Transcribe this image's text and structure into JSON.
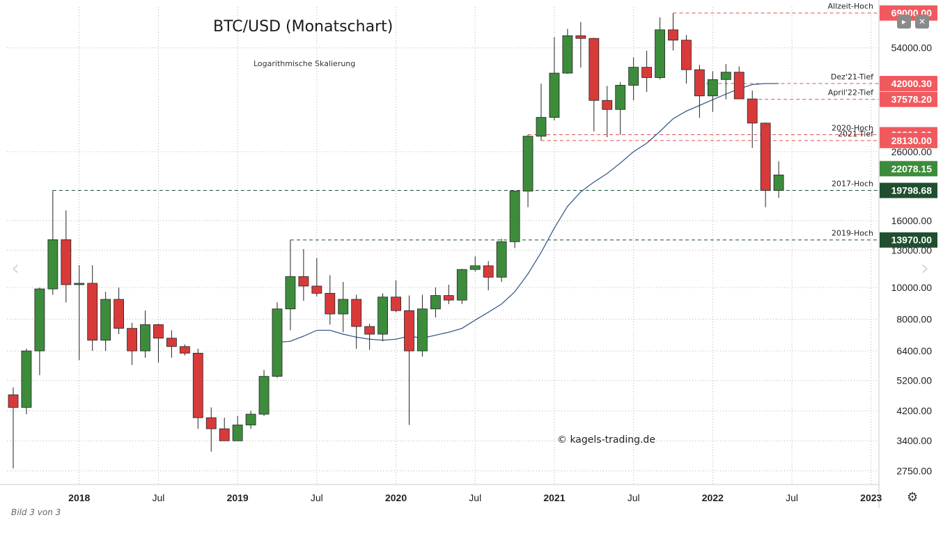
{
  "title": "BTC/USD (Monatschart)",
  "subtitle": "Logarithmische Skalierung",
  "watermark": "© kagels-trading.de",
  "caption": "Bild 3 von 3",
  "controls": {
    "prev": "‹",
    "next": "›",
    "btn1": "▸",
    "btn2": "✕",
    "settings": "⚙"
  },
  "colors": {
    "up": "#3c8c3c",
    "down": "#d83a3a",
    "ma": "#3a5b8c",
    "label_red": "#f05a5f",
    "label_green": "#3c8c3c",
    "label_dark": "#1f4f2f"
  },
  "chart_data": {
    "type": "candlestick",
    "title": "BTC/USD (Monatschart)",
    "y_scale": "log",
    "ylim": [
      2500,
      72000
    ],
    "x_ticks": [
      "2018",
      "Jul",
      "2019",
      "Jul",
      "2020",
      "Jul",
      "2021",
      "Jul",
      "2022",
      "Jul",
      "2023"
    ],
    "y_ticks": [
      2750,
      3400,
      4200,
      5200,
      6400,
      8000,
      10000,
      13000,
      16000,
      26000,
      54000
    ],
    "y_tick_labels": [
      "2750.00",
      "3400.00",
      "4200.00",
      "5200.00",
      "6400.00",
      "8000.00",
      "10000.00",
      "13000.00",
      "16000.00",
      "26000.00",
      "54000.00"
    ],
    "candles": [
      {
        "date": "2017-08",
        "o": 4700,
        "h": 4950,
        "l": 2800,
        "c": 4300
      },
      {
        "date": "2017-09",
        "o": 4300,
        "h": 6500,
        "l": 4100,
        "c": 6400
      },
      {
        "date": "2017-10",
        "o": 6400,
        "h": 10000,
        "l": 5400,
        "c": 9900
      },
      {
        "date": "2017-11",
        "o": 9900,
        "h": 19798.68,
        "l": 9500,
        "c": 14000
      },
      {
        "date": "2017-12",
        "o": 14000,
        "h": 17200,
        "l": 9000,
        "c": 10200
      },
      {
        "date": "2018-01",
        "o": 10200,
        "h": 11700,
        "l": 6000,
        "c": 10300
      },
      {
        "date": "2018-02",
        "o": 10300,
        "h": 11700,
        "l": 6400,
        "c": 6900
      },
      {
        "date": "2018-03",
        "o": 6900,
        "h": 9700,
        "l": 6400,
        "c": 9200
      },
      {
        "date": "2018-04",
        "o": 9200,
        "h": 10000,
        "l": 7200,
        "c": 7500
      },
      {
        "date": "2018-05",
        "o": 7500,
        "h": 7800,
        "l": 5800,
        "c": 6400
      },
      {
        "date": "2018-06",
        "o": 6400,
        "h": 8500,
        "l": 6100,
        "c": 7700
      },
      {
        "date": "2018-07",
        "o": 7700,
        "h": 7750,
        "l": 5900,
        "c": 7000
      },
      {
        "date": "2018-08",
        "o": 7000,
        "h": 7400,
        "l": 6100,
        "c": 6600
      },
      {
        "date": "2018-09",
        "o": 6600,
        "h": 6700,
        "l": 6200,
        "c": 6300
      },
      {
        "date": "2018-10",
        "o": 6300,
        "h": 6500,
        "l": 3700,
        "c": 4000
      },
      {
        "date": "2018-11",
        "o": 4000,
        "h": 4300,
        "l": 3150,
        "c": 3700
      },
      {
        "date": "2018-12",
        "o": 3700,
        "h": 4000,
        "l": 3400,
        "c": 3400
      },
      {
        "date": "2019-01",
        "o": 3400,
        "h": 4050,
        "l": 3400,
        "c": 3800
      },
      {
        "date": "2019-02",
        "o": 3800,
        "h": 4200,
        "l": 3700,
        "c": 4100
      },
      {
        "date": "2019-03",
        "o": 4100,
        "h": 5600,
        "l": 4050,
        "c": 5350
      },
      {
        "date": "2019-04",
        "o": 5350,
        "h": 9000,
        "l": 5300,
        "c": 8600
      },
      {
        "date": "2019-05",
        "o": 8600,
        "h": 13970,
        "l": 7400,
        "c": 10800
      },
      {
        "date": "2019-06",
        "o": 10800,
        "h": 13100,
        "l": 9100,
        "c": 10100
      },
      {
        "date": "2019-07",
        "o": 10100,
        "h": 12300,
        "l": 9400,
        "c": 9600
      },
      {
        "date": "2019-08",
        "o": 9600,
        "h": 10900,
        "l": 7700,
        "c": 8300
      },
      {
        "date": "2019-09",
        "o": 8300,
        "h": 10400,
        "l": 7300,
        "c": 9200
      },
      {
        "date": "2019-10",
        "o": 9200,
        "h": 9500,
        "l": 6500,
        "c": 7600
      },
      {
        "date": "2019-11",
        "o": 7600,
        "h": 7750,
        "l": 6450,
        "c": 7200
      },
      {
        "date": "2019-12",
        "o": 7200,
        "h": 9600,
        "l": 6850,
        "c": 9350
      },
      {
        "date": "2020-01",
        "o": 9350,
        "h": 10500,
        "l": 8400,
        "c": 8500
      },
      {
        "date": "2020-02",
        "o": 8500,
        "h": 9450,
        "l": 3800,
        "c": 6400
      },
      {
        "date": "2020-03",
        "o": 6400,
        "h": 9500,
        "l": 6150,
        "c": 8600
      },
      {
        "date": "2020-04",
        "o": 8600,
        "h": 10000,
        "l": 8100,
        "c": 9450
      },
      {
        "date": "2020-05",
        "o": 9450,
        "h": 10200,
        "l": 8900,
        "c": 9150
      },
      {
        "date": "2020-06",
        "o": 9150,
        "h": 11400,
        "l": 8900,
        "c": 11350
      },
      {
        "date": "2020-07",
        "o": 11350,
        "h": 12450,
        "l": 11200,
        "c": 11650
      },
      {
        "date": "2020-08",
        "o": 11650,
        "h": 12050,
        "l": 9800,
        "c": 10750
      },
      {
        "date": "2020-09",
        "o": 10750,
        "h": 14100,
        "l": 10400,
        "c": 13800
      },
      {
        "date": "2020-10",
        "o": 13800,
        "h": 19800,
        "l": 13200,
        "c": 19700
      },
      {
        "date": "2020-11",
        "o": 19700,
        "h": 29300,
        "l": 17600,
        "c": 28990
      },
      {
        "date": "2020-12",
        "o": 28990,
        "h": 41950,
        "l": 28130,
        "c": 33100
      },
      {
        "date": "2021-01",
        "o": 33100,
        "h": 58300,
        "l": 32400,
        "c": 45200
      },
      {
        "date": "2021-02",
        "o": 45200,
        "h": 61700,
        "l": 44950,
        "c": 58800
      },
      {
        "date": "2021-03",
        "o": 58800,
        "h": 64800,
        "l": 47000,
        "c": 57700
      },
      {
        "date": "2021-04",
        "o": 57700,
        "h": 58000,
        "l": 30000,
        "c": 37300
      },
      {
        "date": "2021-05",
        "o": 37300,
        "h": 41300,
        "l": 28800,
        "c": 35000
      },
      {
        "date": "2021-06",
        "o": 35000,
        "h": 42450,
        "l": 29300,
        "c": 41500
      },
      {
        "date": "2021-07",
        "o": 41500,
        "h": 50500,
        "l": 37300,
        "c": 47100
      },
      {
        "date": "2021-08",
        "o": 47100,
        "h": 52900,
        "l": 39600,
        "c": 43800
      },
      {
        "date": "2021-09",
        "o": 43800,
        "h": 66900,
        "l": 43300,
        "c": 61300
      },
      {
        "date": "2021-10",
        "o": 61300,
        "h": 69000,
        "l": 53000,
        "c": 57000
      },
      {
        "date": "2021-11",
        "o": 57000,
        "h": 59100,
        "l": 42000,
        "c": 46300
      },
      {
        "date": "2021-12",
        "o": 46300,
        "h": 47900,
        "l": 33000,
        "c": 38500
      },
      {
        "date": "2022-01",
        "o": 38500,
        "h": 45800,
        "l": 34400,
        "c": 43200
      },
      {
        "date": "2022-02",
        "o": 43200,
        "h": 48200,
        "l": 37578.2,
        "c": 45500
      },
      {
        "date": "2022-03",
        "o": 45500,
        "h": 47400,
        "l": 37700,
        "c": 37700
      },
      {
        "date": "2022-04",
        "o": 37700,
        "h": 40000,
        "l": 26700,
        "c": 31800
      },
      {
        "date": "2022-05",
        "o": 31800,
        "h": 31900,
        "l": 17600,
        "c": 19800
      },
      {
        "date": "2022-06",
        "o": 19800,
        "h": 24300,
        "l": 18800,
        "c": 22078.15
      }
    ],
    "moving_average": {
      "points": [
        {
          "date": "2019-04",
          "v": 6800
        },
        {
          "date": "2019-05",
          "v": 6850
        },
        {
          "date": "2019-06",
          "v": 7100
        },
        {
          "date": "2019-07",
          "v": 7400
        },
        {
          "date": "2019-08",
          "v": 7400
        },
        {
          "date": "2019-09",
          "v": 7200
        },
        {
          "date": "2019-10",
          "v": 7050
        },
        {
          "date": "2019-11",
          "v": 6950
        },
        {
          "date": "2019-12",
          "v": 6900
        },
        {
          "date": "2020-01",
          "v": 6950
        },
        {
          "date": "2020-02",
          "v": 7100
        },
        {
          "date": "2020-03",
          "v": 7000
        },
        {
          "date": "2020-04",
          "v": 7150
        },
        {
          "date": "2020-05",
          "v": 7300
        },
        {
          "date": "2020-06",
          "v": 7500
        },
        {
          "date": "2020-07",
          "v": 7950
        },
        {
          "date": "2020-08",
          "v": 8400
        },
        {
          "date": "2020-09",
          "v": 8900
        },
        {
          "date": "2020-10",
          "v": 9700
        },
        {
          "date": "2020-11",
          "v": 11000
        },
        {
          "date": "2020-12",
          "v": 12800
        },
        {
          "date": "2021-01",
          "v": 15200
        },
        {
          "date": "2021-02",
          "v": 17700
        },
        {
          "date": "2021-03",
          "v": 19600
        },
        {
          "date": "2021-04",
          "v": 21000
        },
        {
          "date": "2021-05",
          "v": 22300
        },
        {
          "date": "2021-06",
          "v": 24000
        },
        {
          "date": "2021-07",
          "v": 26000
        },
        {
          "date": "2021-08",
          "v": 27600
        },
        {
          "date": "2021-09",
          "v": 30000
        },
        {
          "date": "2021-10",
          "v": 32800
        },
        {
          "date": "2021-11",
          "v": 34600
        },
        {
          "date": "2021-12",
          "v": 36000
        },
        {
          "date": "2022-01",
          "v": 37500
        },
        {
          "date": "2022-02",
          "v": 39000
        },
        {
          "date": "2022-03",
          "v": 40500
        },
        {
          "date": "2022-04",
          "v": 41700
        },
        {
          "date": "2022-05",
          "v": 42000
        },
        {
          "date": "2022-06",
          "v": 42000.3
        }
      ]
    },
    "levels": [
      {
        "name": "Allzeit-Hoch",
        "value": 69000,
        "price_label": "69000.00",
        "box": "red",
        "line": "red",
        "from": "2021-10"
      },
      {
        "name": "Dez'21-Tief",
        "value": 42000.3,
        "price_label": "42000.30",
        "box": "red",
        "line": "red",
        "from": "2021-12"
      },
      {
        "name": "April'22-Tief",
        "value": 37578.2,
        "price_label": "37578.20",
        "box": "red",
        "line": "red",
        "from": "2022-04"
      },
      {
        "name": "2020-Hoch",
        "value": 29300,
        "price_label": "29300.00",
        "box": "red",
        "line": "red",
        "from": "2020-11"
      },
      {
        "name": "2021-Tief",
        "value": 28130,
        "price_label": "28130.00",
        "box": "red",
        "line": "red",
        "from": "2020-12"
      },
      {
        "name": "2017-Hoch",
        "value": 19798.68,
        "price_label": "19798.68",
        "box": "dark",
        "line": "dark",
        "from": "2017-11"
      },
      {
        "name": "2019-Hoch",
        "value": 13970,
        "price_label": "13970.00",
        "box": "dark",
        "line": "dark",
        "from": "2019-05"
      }
    ],
    "last_price": {
      "value": 22078.15,
      "label": "22078.15"
    }
  }
}
